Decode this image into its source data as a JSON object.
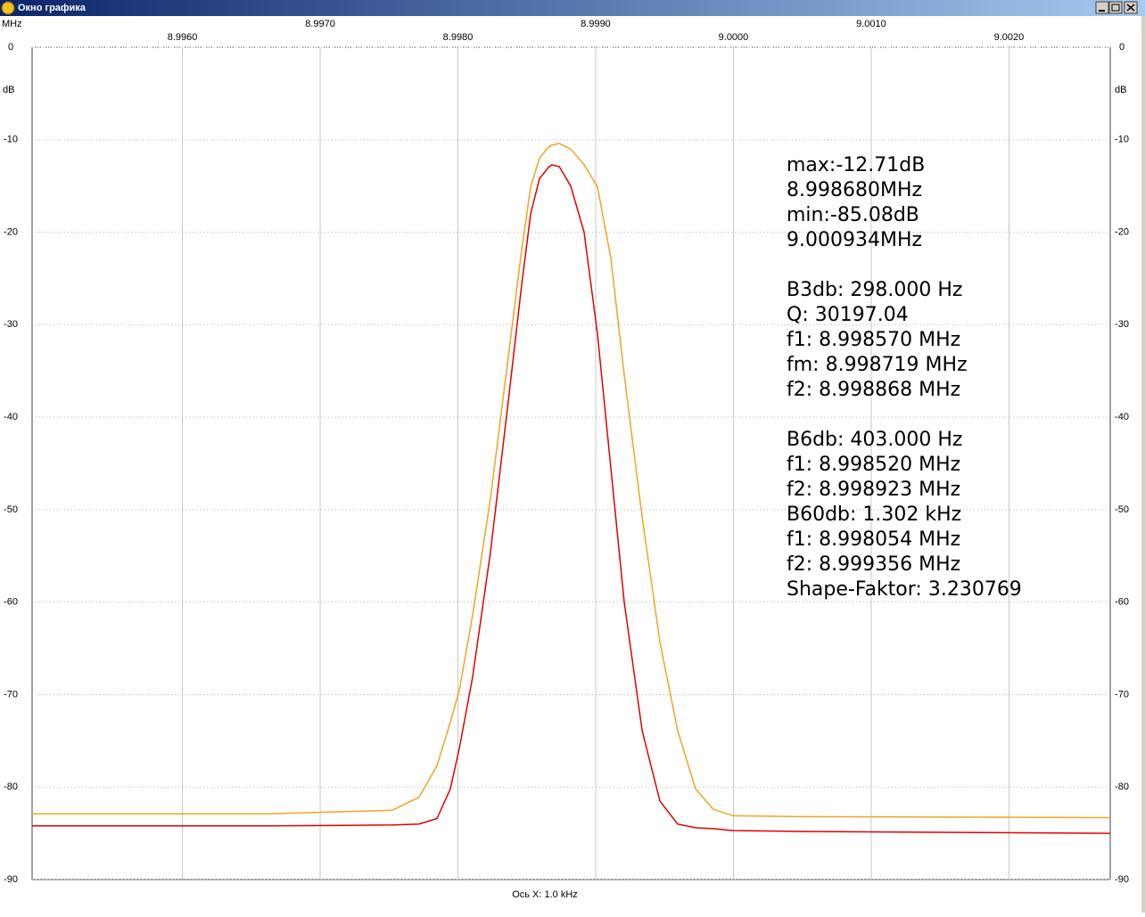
{
  "window_title": "Окно графика",
  "chart_data": {
    "type": "line",
    "x_unit": "MHz",
    "y_unit": "dB",
    "xlabel": "Ось X: 1.0 kHz",
    "x": [
      8.994909,
      8.996618,
      8.997524,
      8.997718,
      8.997848,
      8.997945,
      8.99801,
      8.998107,
      8.998236,
      8.998366,
      8.998463,
      8.998528,
      8.998592,
      8.998657,
      8.99868,
      8.998735,
      8.998819,
      8.998916,
      8.999013,
      8.99911,
      8.999207,
      8.999337,
      8.999466,
      8.999595,
      8.999725,
      8.999854,
      8.999997,
      9.000502,
      9.002735
    ],
    "series": [
      {
        "color": "#f0a424",
        "values": [
          -82.9,
          -82.9,
          -82.5,
          -81.1,
          -77.7,
          -73.0,
          -69.5,
          -61.4,
          -48.8,
          -33.4,
          -21.9,
          -15.1,
          -12.0,
          -10.8,
          -10.6,
          -10.4,
          -11.0,
          -12.7,
          -15.1,
          -22.8,
          -35.4,
          -50.8,
          -64.3,
          -73.9,
          -80.2,
          -82.4,
          -83.1,
          -83.2,
          -83.3
        ]
      },
      {
        "color": "#e00000",
        "values": [
          -84.2,
          -84.2,
          -84.1,
          -84.0,
          -83.4,
          -80.2,
          -75.8,
          -68.1,
          -54.6,
          -38.2,
          -25.7,
          -18.0,
          -14.2,
          -13.0,
          -12.71,
          -12.9,
          -15.0,
          -20.0,
          -31.0,
          -45.5,
          -60.0,
          -73.9,
          -81.5,
          -84.0,
          -84.4,
          -84.5,
          -84.7,
          -84.8,
          -85.0
        ]
      }
    ],
    "xlim": [
      8.994909,
      9.002735
    ],
    "xticks": [
      {
        "value": 8.996,
        "label": "8.9960"
      },
      {
        "value": 8.997,
        "label": "8.9970"
      },
      {
        "value": 8.998,
        "label": "8.9980"
      },
      {
        "value": 8.999,
        "label": "8.9990"
      },
      {
        "value": 9.0,
        "label": "9.0000"
      },
      {
        "value": 9.001,
        "label": "9.0010"
      },
      {
        "value": 9.002,
        "label": "9.0020"
      }
    ],
    "ylim": [
      -90,
      0
    ],
    "yticks": [
      0,
      -10,
      -20,
      -30,
      -40,
      -50,
      -60,
      -70,
      -80,
      -90
    ],
    "grid": true,
    "annotations": [
      [
        "max:-12.71dB",
        "8.998680MHz",
        "min:-85.08dB",
        "9.000934MHz"
      ],
      [
        "B3db: 298.000 Hz",
        "Q: 30197.04",
        "f1: 8.998570 MHz",
        "fm: 8.998719 MHz",
        "f2: 8.998868 MHz"
      ],
      [
        "B6db: 403.000 Hz",
        "f1: 8.998520 MHz",
        "f2: 8.998923 MHz",
        "B60db: 1.302 kHz",
        "f1: 8.998054 MHz",
        "f2: 8.999356 MHz",
        "Shape-Faktor: 3.230769"
      ]
    ]
  }
}
